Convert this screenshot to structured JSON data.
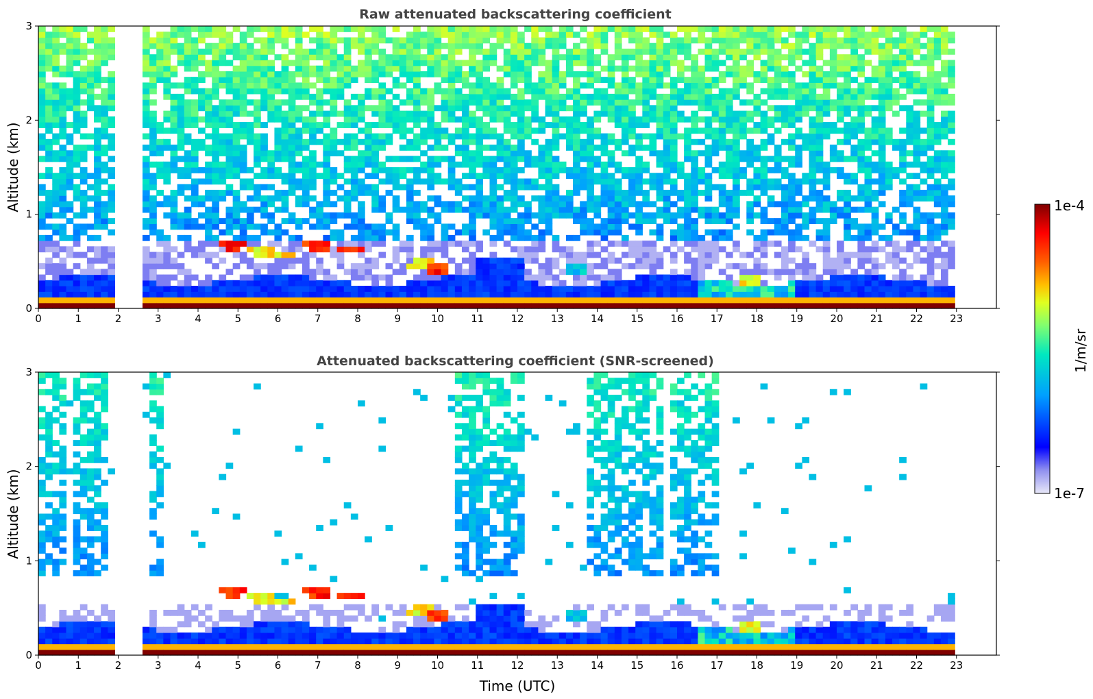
{
  "chart_data": [
    {
      "type": "heatmap",
      "title": "Raw attenuated backscattering coefficient",
      "xlabel": "",
      "ylabel": "Altitude (km)",
      "xlim": [
        0,
        24
      ],
      "ylim": [
        0,
        3
      ],
      "x_ticks": [
        "0",
        "1",
        "2",
        "3",
        "4",
        "5",
        "6",
        "7",
        "8",
        "9",
        "10",
        "11",
        "12",
        "13",
        "14",
        "15",
        "16",
        "17",
        "18",
        "19",
        "20",
        "21",
        "22",
        "23"
      ],
      "y_ticks": [
        "0",
        "1",
        "2",
        "3"
      ],
      "data_gaps_utc": [
        [
          1.95,
          2.6
        ]
      ],
      "data_end_utc": 23.0,
      "layers": {
        "surface_layer_top_km": 0.15,
        "aerosol_layer_top_km": 0.3,
        "elevated_clouds": [
          {
            "t": 4.9,
            "z": 0.68,
            "intensity": "high"
          },
          {
            "t": 5.5,
            "z": 0.62,
            "intensity": "medium"
          },
          {
            "t": 6.15,
            "z": 0.57,
            "intensity": "medium"
          },
          {
            "t": 7.0,
            "z": 0.67,
            "intensity": "high"
          },
          {
            "t": 7.9,
            "z": 0.63,
            "intensity": "high"
          },
          {
            "t": 10.0,
            "z": 0.43,
            "intensity": "high"
          },
          {
            "t": 9.6,
            "z": 0.47,
            "intensity": "medium"
          },
          {
            "t": 13.5,
            "z": 0.42,
            "intensity": "low"
          },
          {
            "t": 17.8,
            "z": 0.3,
            "intensity": "medium"
          }
        ]
      }
    },
    {
      "type": "heatmap",
      "title": "Attenuated backscattering coefficient (SNR-screened)",
      "xlabel": "Time (UTC)",
      "ylabel": "Altitude (km)",
      "xlim": [
        0,
        24
      ],
      "ylim": [
        0,
        3
      ],
      "x_ticks": [
        "0",
        "1",
        "2",
        "3",
        "4",
        "5",
        "6",
        "7",
        "8",
        "9",
        "10",
        "11",
        "12",
        "13",
        "14",
        "15",
        "16",
        "17",
        "18",
        "19",
        "20",
        "21",
        "22",
        "23"
      ],
      "y_ticks": [
        "0",
        "1",
        "2",
        "3"
      ],
      "data_gaps_utc": [
        [
          1.95,
          2.6
        ]
      ],
      "data_end_utc": 23.0
    }
  ],
  "colorbar": {
    "label": "1/m/sr",
    "min_label": "1e-7",
    "max_label": "1e-4",
    "scale": "log",
    "colormap": [
      "#e8e8f8",
      "#0000ff",
      "#00c8ff",
      "#60ff90",
      "#ffff00",
      "#ff8000",
      "#ff0000",
      "#800000"
    ]
  }
}
